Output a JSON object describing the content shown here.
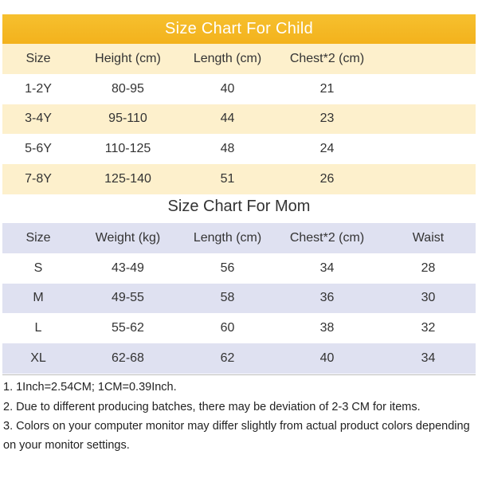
{
  "child": {
    "title": "Size Chart For Child",
    "headers": [
      "Size",
      "Height (cm)",
      "Length (cm)",
      "Chest*2 (cm)",
      ""
    ],
    "rows": [
      [
        "1-2Y",
        "80-95",
        "40",
        "21",
        ""
      ],
      [
        "3-4Y",
        "95-110",
        "44",
        "23",
        ""
      ],
      [
        "5-6Y",
        "110-125",
        "48",
        "24",
        ""
      ],
      [
        "7-8Y",
        "125-140",
        "51",
        "26",
        ""
      ]
    ]
  },
  "mom": {
    "title": "Size Chart For Mom",
    "headers": [
      "Size",
      "Weight (kg)",
      "Length (cm)",
      "Chest*2 (cm)",
      "Waist"
    ],
    "rows": [
      [
        "S",
        "43-49",
        "56",
        "34",
        "28"
      ],
      [
        "M",
        "49-55",
        "58",
        "36",
        "30"
      ],
      [
        "L",
        "55-62",
        "60",
        "38",
        "32"
      ],
      [
        "XL",
        "62-68",
        "62",
        "40",
        "34"
      ]
    ]
  },
  "notes": [
    "1. 1Inch=2.54CM; 1CM=0.39Inch.",
    "2. Due to different producing batches, there may be deviation of 2-3 CM for items.",
    "3. Colors on your computer monitor may differ slightly from actual product colors depending on your monitor settings."
  ],
  "colors": {
    "banner": "#f3b21c",
    "child_stripe": "#fdf0cc",
    "mom_stripe": "#dfe1f1"
  }
}
